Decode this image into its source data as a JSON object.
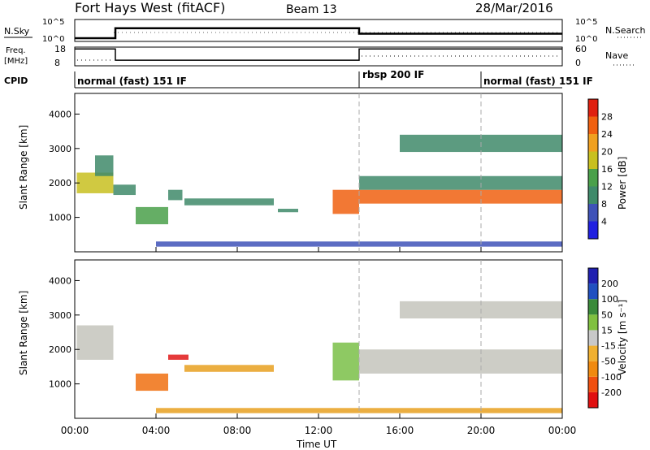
{
  "header": {
    "title": "Fort Hays West (fitACF)",
    "beam": "Beam 13",
    "date": "28/Mar/2016"
  },
  "chart_data": [
    {
      "type": "line",
      "name": "noise",
      "left_label": "N.Sky",
      "right_label": "N.Search",
      "left_ticks": [
        "10^5",
        "10^0"
      ],
      "right_ticks": [
        "10^5",
        "10^0"
      ],
      "series": [
        {
          "name": "N.Sky",
          "x_hours": [
            0,
            2,
            2,
            14,
            14,
            24
          ],
          "level": [
            0.15,
            0.15,
            0.6,
            0.6,
            0.35,
            0.35
          ]
        },
        {
          "name": "N.Search",
          "dotted": true
        }
      ]
    },
    {
      "type": "line",
      "name": "frequency",
      "left_label": "Freq.\n[MHz]",
      "right_label": "Nave",
      "left_ticks": [
        "18",
        "8"
      ],
      "right_ticks": [
        "60",
        "0"
      ],
      "series": [
        {
          "name": "Freq",
          "x_hours": [
            0,
            2,
            2,
            14,
            14,
            24
          ],
          "level": [
            0.9,
            0.9,
            0.3,
            0.3,
            0.9,
            0.9
          ]
        },
        {
          "name": "Nave",
          "dotted": true
        }
      ]
    },
    {
      "type": "table",
      "name": "cpid",
      "label": "CPID",
      "segments": [
        {
          "start": 0,
          "end": 14,
          "label": "normal (fast) 151 IF"
        },
        {
          "start": 14,
          "end": 20,
          "label": "rbsp 200 IF"
        },
        {
          "start": 20,
          "end": 24,
          "label": "normal (fast) 151 IF"
        }
      ]
    },
    {
      "type": "heatmap",
      "name": "power",
      "ylabel": "Slant Range [km]",
      "ylim": [
        0,
        4600
      ],
      "yticks": [
        1000,
        2000,
        3000,
        4000
      ],
      "xlim": [
        0,
        24
      ],
      "colorbar": {
        "label": "Power [dB]",
        "range": [
          0,
          32
        ],
        "ticks": [
          4,
          8,
          12,
          16,
          20,
          24,
          28
        ],
        "colors": [
          "#2020e0",
          "#3f52b8",
          "#3f8a6a",
          "#4aa04a",
          "#c8c020",
          "#f0a020",
          "#f06010",
          "#e02010"
        ]
      },
      "features": [
        {
          "t0": 0.1,
          "t1": 1.9,
          "r0": 1700,
          "r1": 2300,
          "v": 18
        },
        {
          "t0": 1.0,
          "t1": 1.9,
          "r0": 2200,
          "r1": 2800,
          "v": 10
        },
        {
          "t0": 1.9,
          "t1": 3.0,
          "r0": 1650,
          "r1": 1950,
          "v": 9
        },
        {
          "t0": 3.0,
          "t1": 4.6,
          "r0": 800,
          "r1": 1300,
          "v": 14
        },
        {
          "t0": 4.6,
          "t1": 5.3,
          "r0": 1500,
          "r1": 1800,
          "v": 8
        },
        {
          "t0": 5.4,
          "t1": 9.8,
          "r0": 1350,
          "r1": 1550,
          "v": 8
        },
        {
          "t0": 10.0,
          "t1": 11.0,
          "r0": 1150,
          "r1": 1250,
          "v": 8
        },
        {
          "t0": 12.7,
          "t1": 14.0,
          "r0": 1100,
          "r1": 1800,
          "v": 24
        },
        {
          "t0": 14.0,
          "t1": 24.0,
          "r0": 1400,
          "r1": 1800,
          "v": 26
        },
        {
          "t0": 14.0,
          "t1": 24.0,
          "r0": 1800,
          "r1": 2200,
          "v": 10
        },
        {
          "t0": 16.0,
          "t1": 24.0,
          "r0": 2900,
          "r1": 3400,
          "v": 8
        },
        {
          "t0": 4.0,
          "t1": 24.0,
          "r0": 150,
          "r1": 300,
          "v": 6
        }
      ]
    },
    {
      "type": "heatmap",
      "name": "velocity",
      "ylabel": "Slant Range [km]",
      "ylim": [
        0,
        4600
      ],
      "yticks": [
        1000,
        2000,
        3000,
        4000
      ],
      "xlim": [
        0,
        24
      ],
      "xlabel": "Time UT",
      "xticks": [
        "00:00",
        "04:00",
        "08:00",
        "12:00",
        "16:00",
        "20:00",
        "00:00"
      ],
      "colorbar": {
        "label": "Velocity [m s⁻¹]",
        "range": [
          -250,
          250
        ],
        "ticks": [
          "200",
          "100",
          "50",
          "15",
          "-15",
          "-50",
          "-100",
          "-200"
        ],
        "colors": [
          "#e01010",
          "#f05010",
          "#f08a10",
          "#f0b030",
          "#c8c8c8",
          "#80c040",
          "#3a8a3a",
          "#2050c0",
          "#2020b0"
        ]
      },
      "features": [
        {
          "t0": 0.1,
          "t1": 1.9,
          "r0": 1700,
          "r1": 2700,
          "v": "gray"
        },
        {
          "t0": 3.0,
          "t1": 4.6,
          "r0": 800,
          "r1": 1300,
          "v": "orange"
        },
        {
          "t0": 4.6,
          "t1": 5.6,
          "r0": 1700,
          "r1": 1850,
          "v": "red"
        },
        {
          "t0": 5.4,
          "t1": 9.8,
          "r0": 1350,
          "r1": 1550,
          "v": "amber"
        },
        {
          "t0": 12.7,
          "t1": 14.0,
          "r0": 1100,
          "r1": 2200,
          "v": "green"
        },
        {
          "t0": 14.0,
          "t1": 24.0,
          "r0": 1300,
          "r1": 2000,
          "v": "gray"
        },
        {
          "t0": 16.0,
          "t1": 24.0,
          "r0": 2900,
          "r1": 3400,
          "v": "gray"
        },
        {
          "t0": 4.0,
          "t1": 24.0,
          "r0": 150,
          "r1": 300,
          "v": "amber"
        }
      ]
    }
  ]
}
